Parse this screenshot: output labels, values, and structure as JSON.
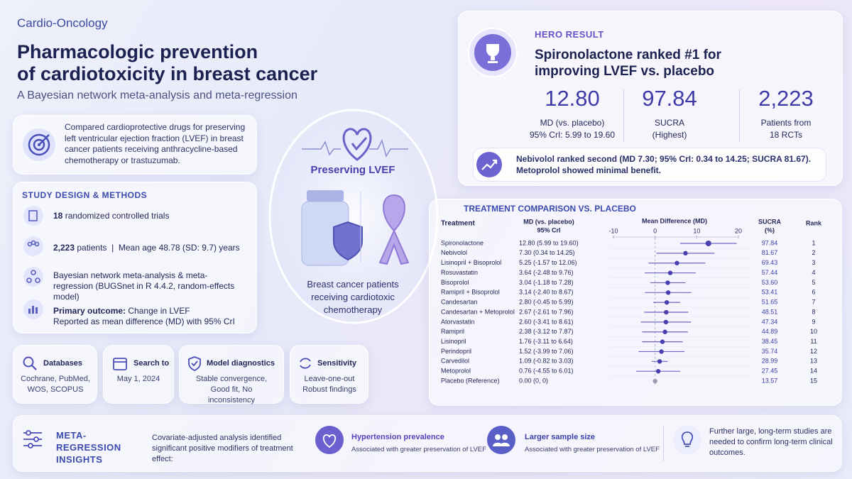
{
  "header": {
    "kicker": "Cardio-Oncology",
    "title_lines": [
      "Pharmacologic prevention",
      "of cardiotoxicity in breast cancer"
    ],
    "subtitle": "A Bayesian network meta-analysis and meta-regression"
  },
  "objective": "Compared cardioprotective drugs for preserving left ventricular ejection fraction (LVEF) in breast cancer patients receiving anthracycline-based chemotherapy or trastuzumab.",
  "design": {
    "heading": "STUDY DESIGN & METHODS",
    "items": [
      {
        "strong": "18",
        "text": "randomized controlled trials"
      },
      {
        "strong": "2,223",
        "text": "patients  |  Mean age 48.78 (SD: 9.7) years"
      },
      {
        "text": "Bayesian network meta-analysis & meta-regression (BUGSnet in R 4.4.2, random-effects model)"
      },
      {
        "strong": "Primary outcome:",
        "text": "Change in LVEF",
        "sub": "Reported as mean difference (MD) with 95% CrI"
      }
    ]
  },
  "cards": [
    {
      "title": "Databases",
      "text": "Cochrane, PubMed, WOS, SCOPUS"
    },
    {
      "title": "Search to",
      "text": "May 1, 2024"
    },
    {
      "title": "Model diagnostics",
      "text": "Stable convergence, Good fit, No inconsistency"
    },
    {
      "title": "Sensitivity",
      "text": "Leave-one-out Robust findings"
    }
  ],
  "center": {
    "label": "Preserving LVEF",
    "caption": "Breast cancer patients receiving cardiotoxic chemotherapy"
  },
  "hero": {
    "kicker": "HERO RESULT",
    "headline": "Spironolactone ranked #1 for improving LVEF vs. placebo",
    "stats": [
      {
        "value": "12.80",
        "label": "MD (vs. placebo)",
        "sub": "95% CrI: 5.99 to 19.60"
      },
      {
        "value": "97.84",
        "label": "SUCRA",
        "sub": "(Highest)"
      },
      {
        "value": "2,223",
        "label": "Patients from",
        "sub": "18 RCTs"
      }
    ],
    "note": "Nebivolol ranked second (MD 7.30; 95% CrI: 0.34 to 14.25; SUCRA 81.67). Metoprolol showed minimal benefit."
  },
  "forest": {
    "title": "TREATMENT COMPARISON VS. PLACEBO",
    "columns": {
      "treatment": "Treatment",
      "md": "MD (vs. placebo)",
      "md_sub": "95% CrI",
      "plot": "Mean Difference (MD)",
      "sucra": "SUCRA",
      "sucra_sub": "(%)",
      "rank": "Rank"
    },
    "xlim": [
      -10,
      20
    ],
    "xticks": [
      -10,
      0,
      10,
      20
    ],
    "rows": [
      {
        "name": "Spironolactone",
        "md": 12.8,
        "lo": 5.99,
        "hi": 19.6,
        "label": "12.80 (5.99 to 19.60)",
        "sucra": "97.84",
        "rank": 1
      },
      {
        "name": "Nebivolol",
        "md": 7.3,
        "lo": 0.34,
        "hi": 14.25,
        "label": "7.30 (0.34 to 14.25)",
        "sucra": "81.67",
        "rank": 2
      },
      {
        "name": "Lisinopril + Bisoprolol",
        "md": 5.25,
        "lo": -1.57,
        "hi": 12.06,
        "label": "5.25 (-1.57 to 12.06)",
        "sucra": "69.43",
        "rank": 3
      },
      {
        "name": "Rosuvastatin",
        "md": 3.64,
        "lo": -2.48,
        "hi": 9.76,
        "label": "3.64 (-2.48 to 9.76)",
        "sucra": "57.44",
        "rank": 4
      },
      {
        "name": "Bisoprolol",
        "md": 3.04,
        "lo": -1.18,
        "hi": 7.28,
        "label": "3.04 (-1.18 to 7.28)",
        "sucra": "53.60",
        "rank": 5
      },
      {
        "name": "Ramipril + Bisoprolol",
        "md": 3.14,
        "lo": -2.4,
        "hi": 8.67,
        "label": "3.14 (-2.40 to 8.67)",
        "sucra": "53.41",
        "rank": 6
      },
      {
        "name": "Candesartan",
        "md": 2.8,
        "lo": -0.45,
        "hi": 5.99,
        "label": "2.80 (-0.45 to 5.99)",
        "sucra": "51.65",
        "rank": 7
      },
      {
        "name": "Candesartan + Metoprolol",
        "md": 2.67,
        "lo": -2.61,
        "hi": 7.96,
        "label": "2.67 (-2.61 to 7.96)",
        "sucra": "48.51",
        "rank": 8
      },
      {
        "name": "Atorvastatin",
        "md": 2.6,
        "lo": -3.41,
        "hi": 8.61,
        "label": "2.60 (-3.41 to 8.61)",
        "sucra": "47.34",
        "rank": 9
      },
      {
        "name": "Ramipril",
        "md": 2.38,
        "lo": -3.12,
        "hi": 7.87,
        "label": "2.38 (-3.12 to 7.87)",
        "sucra": "44.89",
        "rank": 10
      },
      {
        "name": "Lisinopril",
        "md": 1.76,
        "lo": -3.11,
        "hi": 6.64,
        "label": "1.76 (-3.11 to 6.64)",
        "sucra": "38.45",
        "rank": 11
      },
      {
        "name": "Perindopril",
        "md": 1.52,
        "lo": -3.99,
        "hi": 7.06,
        "label": "1.52 (-3.99 to 7.06)",
        "sucra": "35.74",
        "rank": 12
      },
      {
        "name": "Carvedilol",
        "md": 1.09,
        "lo": -0.82,
        "hi": 3.03,
        "label": "1.09 (-0.82 to 3.03)",
        "sucra": "28.99",
        "rank": 13
      },
      {
        "name": "Metoprolol",
        "md": 0.76,
        "lo": -4.55,
        "hi": 6.01,
        "label": "0.76 (-4.55 to 6.01)",
        "sucra": "27.45",
        "rank": 14
      },
      {
        "name": "Placebo (Reference)",
        "md": 0,
        "lo": 0,
        "hi": 0,
        "label": "0.00 (0, 0)",
        "sucra": "13.57",
        "rank": 15
      }
    ]
  },
  "meta": {
    "title": "META-REGRESSION INSIGHTS",
    "intro": "Covariate-adjusted analysis identified significant positive modifiers of treatment effect:",
    "items": [
      {
        "title": "Hypertension prevalence",
        "text": "Associated with greater preservation of LVEF"
      },
      {
        "title": "Larger sample size",
        "text": "Associated with greater preservation of LVEF"
      }
    ],
    "note": "Further large, long-term studies are needed to confirm long-term clinical outcomes."
  }
}
